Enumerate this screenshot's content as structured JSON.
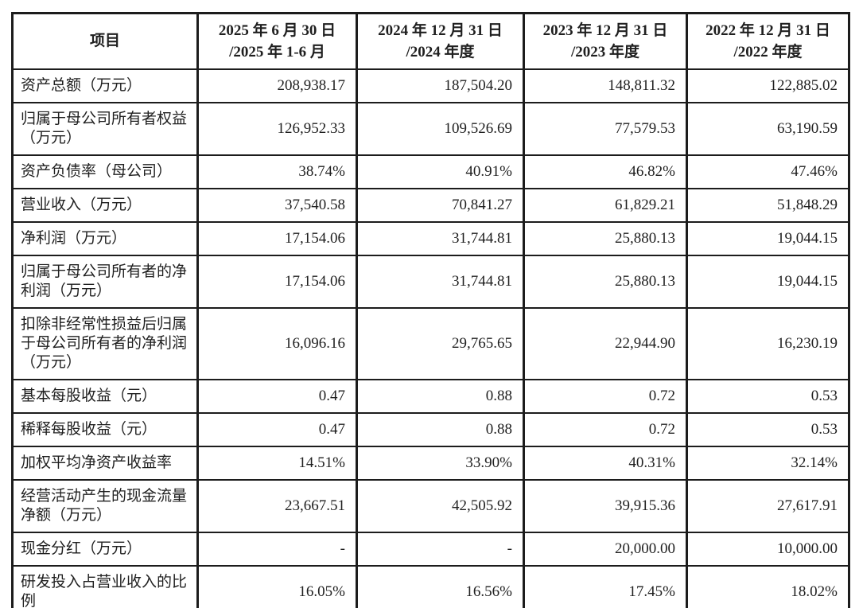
{
  "table": {
    "header": {
      "item": "项目",
      "columns": [
        {
          "line1": "2025 年 6 月 30 日",
          "line2": "/2025 年 1-6 月"
        },
        {
          "line1": "2024 年 12 月 31 日",
          "line2": "/2024 年度"
        },
        {
          "line1": "2023 年 12 月 31 日",
          "line2": "/2023 年度"
        },
        {
          "line1": "2022 年 12 月 31 日",
          "line2": "/2022 年度"
        }
      ]
    },
    "rows": [
      {
        "label": "资产总额（万元）",
        "values": [
          "208,938.17",
          "187,504.20",
          "148,811.32",
          "122,885.02"
        ]
      },
      {
        "label": "归属于母公司所有者权益（万元）",
        "values": [
          "126,952.33",
          "109,526.69",
          "77,579.53",
          "63,190.59"
        ]
      },
      {
        "label": "资产负债率（母公司）",
        "values": [
          "38.74%",
          "40.91%",
          "46.82%",
          "47.46%"
        ]
      },
      {
        "label": "营业收入（万元）",
        "values": [
          "37,540.58",
          "70,841.27",
          "61,829.21",
          "51,848.29"
        ]
      },
      {
        "label": "净利润（万元）",
        "values": [
          "17,154.06",
          "31,744.81",
          "25,880.13",
          "19,044.15"
        ]
      },
      {
        "label": "归属于母公司所有者的净利润（万元）",
        "values": [
          "17,154.06",
          "31,744.81",
          "25,880.13",
          "19,044.15"
        ]
      },
      {
        "label": "扣除非经常性损益后归属于母公司所有者的净利润（万元）",
        "values": [
          "16,096.16",
          "29,765.65",
          "22,944.90",
          "16,230.19"
        ]
      },
      {
        "label": "基本每股收益（元）",
        "values": [
          "0.47",
          "0.88",
          "0.72",
          "0.53"
        ]
      },
      {
        "label": "稀释每股收益（元）",
        "values": [
          "0.47",
          "0.88",
          "0.72",
          "0.53"
        ]
      },
      {
        "label": "加权平均净资产收益率",
        "values": [
          "14.51%",
          "33.90%",
          "40.31%",
          "32.14%"
        ]
      },
      {
        "label": "经营活动产生的现金流量净额（万元）",
        "values": [
          "23,667.51",
          "42,505.92",
          "39,915.36",
          "27,617.91"
        ]
      },
      {
        "label": "现金分红（万元）",
        "values": [
          "-",
          "-",
          "20,000.00",
          "10,000.00"
        ]
      },
      {
        "label": "研发投入占营业收入的比例",
        "values": [
          "16.05%",
          "16.56%",
          "17.45%",
          "18.02%"
        ]
      }
    ]
  }
}
